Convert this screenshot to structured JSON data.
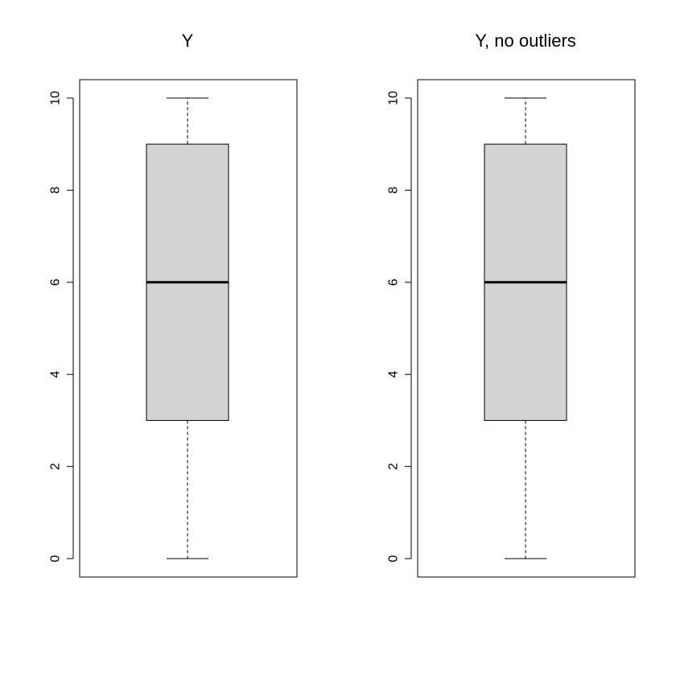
{
  "chart_data": [
    {
      "type": "boxplot",
      "title": "Y",
      "xlabel": "",
      "ylabel": "",
      "ylim": [
        -0.4,
        10.4
      ],
      "yticks": [
        0,
        2,
        4,
        6,
        8,
        10
      ],
      "ytick_labels": [
        "0",
        "2",
        "4",
        "6",
        "8",
        "10"
      ],
      "grid": false,
      "box": {
        "min": 0,
        "q1": 3,
        "median": 6,
        "q3": 9,
        "max": 10
      },
      "colors": {
        "box_fill": "#d3d3d3",
        "stroke": "#000000"
      }
    },
    {
      "type": "boxplot",
      "title": "Y, no outliers",
      "xlabel": "",
      "ylabel": "",
      "ylim": [
        -0.4,
        10.4
      ],
      "yticks": [
        0,
        2,
        4,
        6,
        8,
        10
      ],
      "ytick_labels": [
        "0",
        "2",
        "4",
        "6",
        "8",
        "10"
      ],
      "grid": false,
      "box": {
        "min": 0,
        "q1": 3,
        "median": 6,
        "q3": 9,
        "max": 10
      },
      "colors": {
        "box_fill": "#d3d3d3",
        "stroke": "#000000"
      }
    }
  ]
}
